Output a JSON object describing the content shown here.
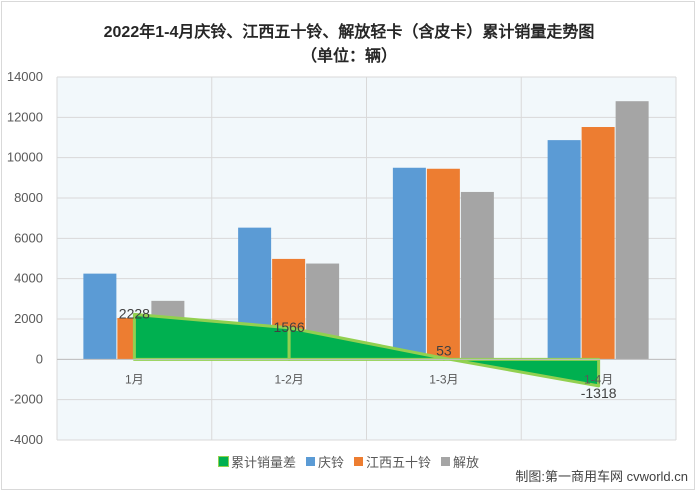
{
  "chart_data": {
    "type": "bar",
    "title": "2022年1-4月庆铃、江西五十铃、解放轻卡（含皮卡）累计销量走势图",
    "subtitle": "（单位：辆）",
    "categories": [
      "1月",
      "1-2月",
      "1-3月",
      "1-4月"
    ],
    "ylim": [
      -4000,
      14000
    ],
    "yticks": [
      -4000,
      -2000,
      0,
      2000,
      4000,
      6000,
      8000,
      10000,
      12000,
      14000
    ],
    "grid": true,
    "legend_position": "bottom",
    "series": [
      {
        "name": "庆铃",
        "type": "bar",
        "color": "#5b9bd5",
        "values": [
          4250,
          6530,
          9500,
          10870
        ]
      },
      {
        "name": "江西五十铃",
        "type": "bar",
        "color": "#ed7d31",
        "values": [
          2050,
          4980,
          9450,
          11520
        ]
      },
      {
        "name": "解放",
        "type": "bar",
        "color": "#a5a5a5",
        "values": [
          2900,
          4750,
          8300,
          12800
        ]
      },
      {
        "name": "累计销量差",
        "type": "area",
        "color": "#00b050",
        "border_color": "#92d050",
        "values": [
          2228,
          1566,
          53,
          -1318
        ],
        "data_labels": [
          "2228",
          "1566",
          "53",
          "-1318"
        ]
      }
    ]
  },
  "credit": "制图:第一商用车网 cvworld.cn"
}
